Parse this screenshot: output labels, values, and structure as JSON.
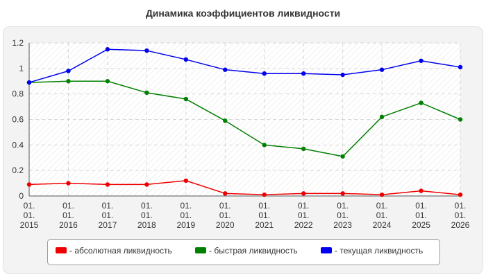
{
  "chart_data": {
    "type": "line",
    "title": "Динамика коэффициентов ликвидности",
    "xlabel": "",
    "ylabel": "",
    "categories": [
      [
        "01.",
        "01.",
        "2015"
      ],
      [
        "01.",
        "01.",
        "2016"
      ],
      [
        "01.",
        "01.",
        "2017"
      ],
      [
        "01.",
        "01.",
        "2018"
      ],
      [
        "01.",
        "01.",
        "2019"
      ],
      [
        "01.",
        "01.",
        "2020"
      ],
      [
        "01.",
        "01.",
        "2021"
      ],
      [
        "01.",
        "01.",
        "2022"
      ],
      [
        "01.",
        "01.",
        "2023"
      ],
      [
        "01.",
        "01.",
        "2024"
      ],
      [
        "01.",
        "01.",
        "2025"
      ],
      [
        "01.",
        "01.",
        "2026"
      ]
    ],
    "ylim": [
      0,
      1.2
    ],
    "yticks": [
      "0",
      "0.2",
      "0.4",
      "0.6",
      "0.8",
      "1",
      "1.2"
    ],
    "grid": true,
    "legend_position": "bottom",
    "series": [
      {
        "name": "- абсолютная ликвидность",
        "color": "#ee0000",
        "values": [
          0.09,
          0.1,
          0.09,
          0.09,
          0.12,
          0.02,
          0.01,
          0.02,
          0.02,
          0.01,
          0.04,
          0.01
        ]
      },
      {
        "name": "- быстрая ликвидность",
        "color": "#008000",
        "values": [
          0.89,
          0.9,
          0.9,
          0.81,
          0.76,
          0.59,
          0.4,
          0.37,
          0.31,
          0.62,
          0.73,
          0.6
        ]
      },
      {
        "name": "- текущая ликвидность",
        "color": "#0000ee",
        "values": [
          0.89,
          0.98,
          1.15,
          1.14,
          1.07,
          0.99,
          0.96,
          0.96,
          0.95,
          0.99,
          1.06,
          1.01
        ]
      }
    ]
  }
}
